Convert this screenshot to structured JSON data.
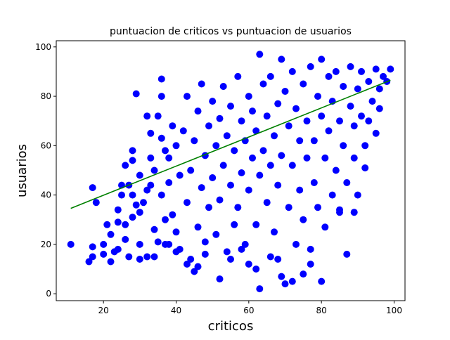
{
  "chart_data": {
    "type": "scatter",
    "title": "puntuacion de criticos vs puntuacion de usuarios",
    "xlabel": "criticos",
    "ylabel": "usuarios",
    "xlim": [
      7,
      103
    ],
    "ylim": [
      -2.8,
      102.5
    ],
    "xticks": [
      20,
      40,
      60,
      80,
      100
    ],
    "yticks": [
      0,
      20,
      40,
      60,
      80,
      100
    ],
    "grid": false,
    "legend": "none",
    "series": [
      {
        "kind": "points",
        "color": "#0000ff",
        "points": [
          [
            11,
            20
          ],
          [
            16,
            13
          ],
          [
            17,
            19
          ],
          [
            17,
            15
          ],
          [
            17,
            43
          ],
          [
            18,
            37
          ],
          [
            20,
            20
          ],
          [
            20,
            16
          ],
          [
            21,
            28
          ],
          [
            22,
            13
          ],
          [
            23,
            17
          ],
          [
            24,
            18
          ],
          [
            24,
            34
          ],
          [
            25,
            44
          ],
          [
            25,
            40
          ],
          [
            26,
            52
          ],
          [
            26,
            22
          ],
          [
            26,
            28
          ],
          [
            27,
            44
          ],
          [
            28,
            40
          ],
          [
            28,
            54
          ],
          [
            28,
            58
          ],
          [
            28,
            31
          ],
          [
            29,
            36
          ],
          [
            29,
            81
          ],
          [
            30,
            20
          ],
          [
            30,
            48
          ],
          [
            30,
            33
          ],
          [
            31,
            37
          ],
          [
            32,
            42
          ],
          [
            32,
            15
          ],
          [
            33,
            55
          ],
          [
            33,
            65
          ],
          [
            33,
            44
          ],
          [
            34,
            26
          ],
          [
            34,
            50
          ],
          [
            35,
            72
          ],
          [
            35,
            21
          ],
          [
            36,
            63
          ],
          [
            36,
            40
          ],
          [
            36,
            87
          ],
          [
            37,
            30
          ],
          [
            37,
            58
          ],
          [
            37,
            20
          ],
          [
            38,
            45
          ],
          [
            38,
            55
          ],
          [
            39,
            68
          ],
          [
            39,
            32
          ],
          [
            40,
            25
          ],
          [
            40,
            60
          ],
          [
            41,
            48
          ],
          [
            41,
            18
          ],
          [
            42,
            66
          ],
          [
            43,
            37
          ],
          [
            43,
            80
          ],
          [
            44,
            14
          ],
          [
            44,
            50
          ],
          [
            45,
            9
          ],
          [
            45,
            62
          ],
          [
            46,
            27
          ],
          [
            46,
            74
          ],
          [
            47,
            43
          ],
          [
            47,
            85
          ],
          [
            48,
            21
          ],
          [
            48,
            56
          ],
          [
            49,
            68
          ],
          [
            49,
            35
          ],
          [
            50,
            47
          ],
          [
            50,
            78
          ],
          [
            51,
            24
          ],
          [
            51,
            60
          ],
          [
            52,
            71
          ],
          [
            52,
            38
          ],
          [
            53,
            52
          ],
          [
            53,
            84
          ],
          [
            54,
            17
          ],
          [
            54,
            64
          ],
          [
            55,
            44
          ],
          [
            55,
            76
          ],
          [
            56,
            28
          ],
          [
            56,
            58
          ],
          [
            57,
            88
          ],
          [
            57,
            35
          ],
          [
            58,
            70
          ],
          [
            58,
            49
          ],
          [
            59,
            20
          ],
          [
            59,
            62
          ],
          [
            60,
            80
          ],
          [
            60,
            42
          ],
          [
            61,
            55
          ],
          [
            61,
            74
          ],
          [
            62,
            28
          ],
          [
            62,
            66
          ],
          [
            63,
            97
          ],
          [
            63,
            2
          ],
          [
            63,
            48
          ],
          [
            64,
            85
          ],
          [
            64,
            58
          ],
          [
            65,
            37
          ],
          [
            65,
            72
          ],
          [
            66,
            52
          ],
          [
            66,
            88
          ],
          [
            67,
            25
          ],
          [
            67,
            64
          ],
          [
            68,
            77
          ],
          [
            68,
            44
          ],
          [
            69,
            95
          ],
          [
            69,
            7
          ],
          [
            69,
            56
          ],
          [
            70,
            4
          ],
          [
            70,
            82
          ],
          [
            71,
            35
          ],
          [
            71,
            68
          ],
          [
            72,
            90
          ],
          [
            72,
            52
          ],
          [
            73,
            20
          ],
          [
            73,
            75
          ],
          [
            74,
            62
          ],
          [
            74,
            42
          ],
          [
            75,
            85
          ],
          [
            75,
            30
          ],
          [
            76,
            70
          ],
          [
            76,
            55
          ],
          [
            77,
            18
          ],
          [
            77,
            92
          ],
          [
            78,
            62
          ],
          [
            78,
            45
          ],
          [
            79,
            80
          ],
          [
            79,
            35
          ],
          [
            80,
            5
          ],
          [
            80,
            72
          ],
          [
            80,
            95
          ],
          [
            81,
            55
          ],
          [
            81,
            27
          ],
          [
            82,
            88
          ],
          [
            82,
            66
          ],
          [
            83,
            40
          ],
          [
            83,
            78
          ],
          [
            84,
            50
          ],
          [
            84,
            90
          ],
          [
            85,
            33
          ],
          [
            85,
            70
          ],
          [
            86,
            60
          ],
          [
            86,
            84
          ],
          [
            87,
            16
          ],
          [
            87,
            45
          ],
          [
            88,
            76
          ],
          [
            88,
            92
          ],
          [
            89,
            55
          ],
          [
            89,
            68
          ],
          [
            90,
            83
          ],
          [
            90,
            40
          ],
          [
            91,
            72
          ],
          [
            91,
            90
          ],
          [
            92,
            60
          ],
          [
            92,
            51
          ],
          [
            93,
            86
          ],
          [
            93,
            70
          ],
          [
            94,
            78
          ],
          [
            95,
            91
          ],
          [
            95,
            65
          ],
          [
            96,
            83
          ],
          [
            96,
            75
          ],
          [
            97,
            88
          ],
          [
            98,
            86
          ],
          [
            99,
            91
          ],
          [
            89,
            33
          ],
          [
            85,
            34
          ],
          [
            52,
            6
          ],
          [
            66,
            15
          ],
          [
            72,
            5
          ],
          [
            75,
            8
          ],
          [
            60,
            12
          ],
          [
            77,
            12
          ],
          [
            46,
            11
          ],
          [
            48,
            16
          ],
          [
            55,
            14
          ],
          [
            58,
            18
          ],
          [
            62,
            10
          ],
          [
            68,
            14
          ],
          [
            40,
            17
          ],
          [
            43,
            12
          ],
          [
            38,
            20
          ],
          [
            34,
            15
          ],
          [
            30,
            14
          ],
          [
            27,
            15
          ],
          [
            22,
            24
          ],
          [
            24,
            29
          ],
          [
            32,
            72
          ],
          [
            36,
            80
          ]
        ]
      },
      {
        "kind": "line",
        "color": "#008000",
        "points": [
          [
            11,
            34.6
          ],
          [
            99,
            86.5
          ]
        ]
      }
    ]
  }
}
